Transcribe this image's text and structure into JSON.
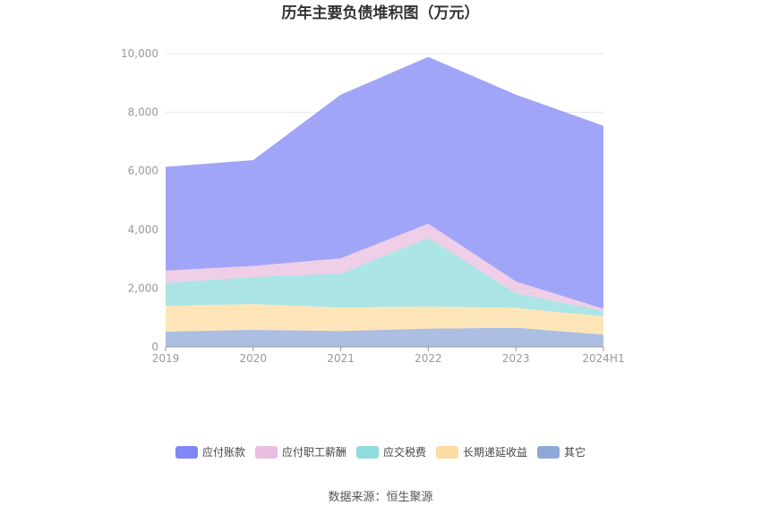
{
  "chart_data": {
    "type": "area",
    "stacked": true,
    "title": "历年主要负债堆积图（万元）",
    "x": [
      "2019",
      "2020",
      "2021",
      "2022",
      "2023",
      "2024H1"
    ],
    "ylim": [
      0,
      10000
    ],
    "yticks": [
      0,
      2000,
      4000,
      6000,
      8000,
      10000
    ],
    "ytick_labels": [
      "0",
      "2,000",
      "4,000",
      "6,000",
      "8,000",
      "10,000"
    ],
    "grid": true,
    "legend_position": "bottom",
    "series": [
      {
        "name": "其它",
        "color": "#90A8D8",
        "values": [
          520,
          580,
          540,
          620,
          650,
          420
        ]
      },
      {
        "name": "长期递延收益",
        "color": "#FDDCA2",
        "values": [
          880,
          880,
          800,
          760,
          680,
          620
        ]
      },
      {
        "name": "应交税费",
        "color": "#8FDCDC",
        "values": [
          780,
          920,
          1160,
          2340,
          500,
          180
        ]
      },
      {
        "name": "应付职工薪酬",
        "color": "#E9BEDF",
        "values": [
          420,
          380,
          520,
          480,
          400,
          80
        ]
      },
      {
        "name": "应付账款",
        "color": "#8287F5",
        "values": [
          3540,
          3610,
          5580,
          5690,
          6370,
          6240
        ]
      }
    ],
    "legend_order": [
      "应付账款",
      "应付职工薪酬",
      "应交税费",
      "长期递延收益",
      "其它"
    ]
  },
  "footer": {
    "source": "数据来源：恒生聚源"
  }
}
